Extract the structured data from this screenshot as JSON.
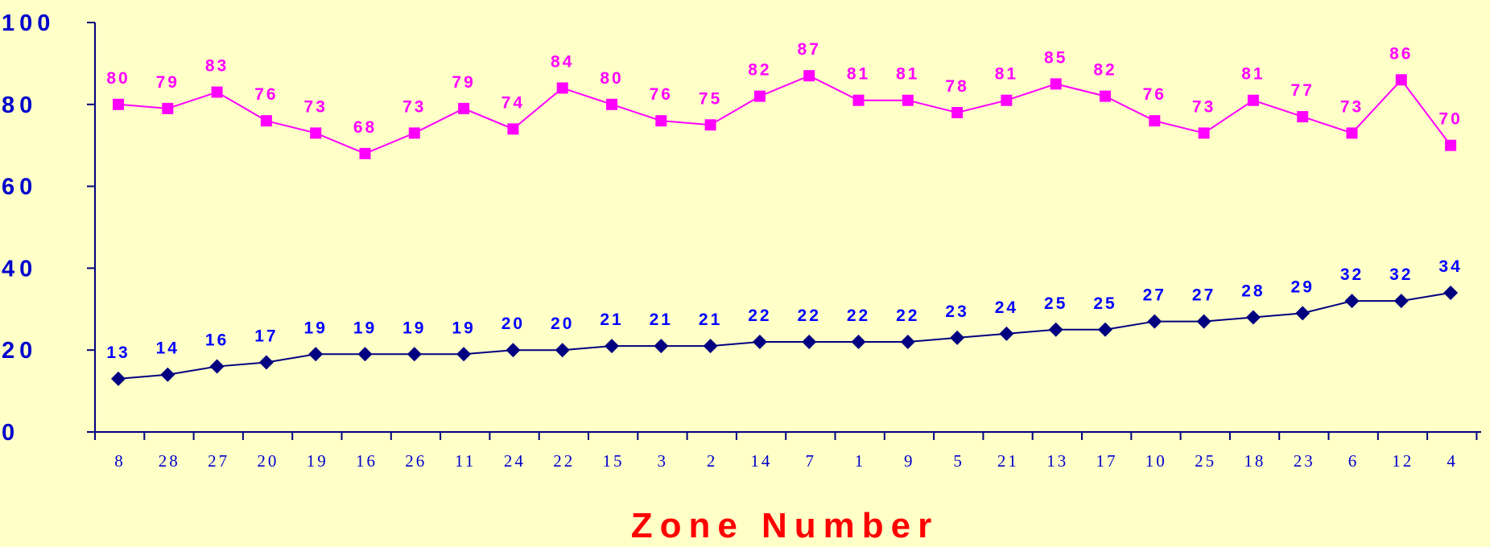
{
  "chart_data": {
    "type": "line",
    "title": "",
    "xlabel": "Zone Number",
    "ylabel": "",
    "ylim": [
      0,
      100
    ],
    "yticks": [
      "0",
      "20",
      "40",
      "60",
      "80",
      "100"
    ],
    "grid": false,
    "legend": "none",
    "categories": [
      "8",
      "28",
      "27",
      "20",
      "19",
      "16",
      "26",
      "11",
      "24",
      "22",
      "15",
      "3",
      "2",
      "14",
      "7",
      "1",
      "9",
      "5",
      "21",
      "13",
      "17",
      "10",
      "25",
      "18",
      "23",
      "6",
      "12",
      "4"
    ],
    "series": [
      {
        "color": "#ff00ff",
        "marker": "square",
        "values": [
          80,
          79,
          83,
          76,
          73,
          68,
          73,
          79,
          74,
          84,
          80,
          76,
          75,
          82,
          87,
          81,
          81,
          78,
          81,
          85,
          82,
          76,
          73,
          81,
          77,
          73,
          86,
          70
        ]
      },
      {
        "color": "#000080",
        "label_color": "#0000ff",
        "marker": "diamond",
        "values": [
          13,
          14,
          16,
          17,
          19,
          19,
          19,
          19,
          20,
          20,
          21,
          21,
          21,
          22,
          22,
          22,
          22,
          23,
          24,
          25,
          25,
          27,
          27,
          28,
          29,
          32,
          32,
          34
        ]
      }
    ],
    "colors": {
      "background": "#ffffc8",
      "axis": "#000080",
      "tick_labels": "#0000cc",
      "xlabel": "#ff0000"
    }
  }
}
